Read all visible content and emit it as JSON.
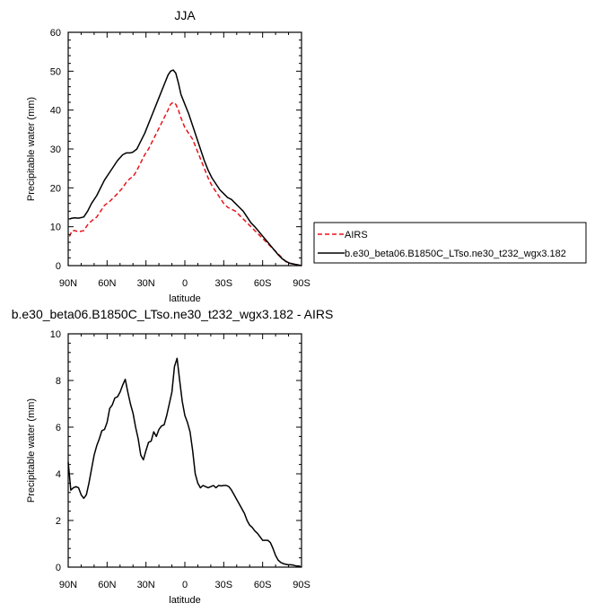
{
  "chart_data": [
    {
      "type": "line",
      "title": "JJA",
      "xlabel": "latitude",
      "ylabel": "Precipitable water (mm)",
      "xlim": [
        90,
        -90
      ],
      "ylim": [
        0,
        60
      ],
      "x_ticks": [
        90,
        60,
        30,
        0,
        -30,
        -60,
        -90
      ],
      "x_tick_labels": [
        "90N",
        "60N",
        "30N",
        "0",
        "30S",
        "60S",
        "90S"
      ],
      "y_ticks": [
        0,
        10,
        20,
        30,
        40,
        50,
        60
      ],
      "y_tick_labels": [
        "0",
        "10",
        "20",
        "30",
        "40",
        "50",
        "60"
      ],
      "legend_position": "outside-right",
      "series": [
        {
          "name": "AIRS",
          "color": "#e8141c",
          "style": "dashed",
          "x": [
            89,
            87,
            85,
            82,
            78,
            75,
            72,
            68,
            65,
            62,
            58,
            55,
            52,
            48,
            45,
            42,
            40,
            37,
            34,
            31,
            28,
            25,
            22,
            19,
            16,
            13,
            11,
            9,
            7,
            5,
            3,
            0,
            -3,
            -6,
            -9,
            -12,
            -15,
            -18,
            -21,
            -24,
            -27,
            -30,
            -33,
            -36,
            -39,
            -42,
            -45,
            -48,
            -51,
            -54,
            -57,
            -60,
            -63,
            -66,
            -69,
            -72,
            -75,
            -78,
            -81,
            -84,
            -87,
            -90
          ],
          "y": [
            7.5,
            9,
            9,
            8.7,
            9,
            10.5,
            11.5,
            12.5,
            14,
            15.5,
            16.5,
            17.5,
            18.5,
            20,
            21.5,
            22.5,
            22.8,
            24.5,
            26.5,
            28.5,
            30,
            32,
            34,
            36,
            38,
            40,
            41.5,
            42,
            41.5,
            40,
            38,
            35.5,
            34,
            32.5,
            30,
            27.5,
            25,
            22.5,
            20.5,
            19,
            17.5,
            16,
            15,
            14.5,
            14,
            13,
            12,
            11,
            10,
            9,
            8,
            7,
            6,
            5,
            4,
            3,
            2,
            1,
            0.6,
            0.4,
            0.2,
            0
          ]
        },
        {
          "name": "b.e30_beta06.B1850C_LTso.ne30_t232_wgx3.182",
          "color": "#000000",
          "style": "solid",
          "x": [
            89,
            87,
            85,
            82,
            78,
            75,
            72,
            68,
            65,
            62,
            58,
            55,
            52,
            48,
            45,
            42,
            40,
            37,
            34,
            31,
            28,
            25,
            22,
            19,
            16,
            13,
            11,
            9,
            7,
            5,
            3,
            0,
            -3,
            -6,
            -9,
            -12,
            -15,
            -18,
            -21,
            -24,
            -27,
            -30,
            -33,
            -36,
            -39,
            -42,
            -45,
            -48,
            -51,
            -54,
            -57,
            -60,
            -63,
            -66,
            -69,
            -72,
            -75,
            -78,
            -81,
            -84,
            -87,
            -90
          ],
          "y": [
            12,
            12.2,
            12.3,
            12.2,
            12.5,
            14,
            16,
            18,
            20,
            22,
            24,
            25.5,
            27,
            28.5,
            29,
            29,
            29.2,
            30,
            32,
            34,
            36.5,
            39,
            41.5,
            44,
            46.5,
            49,
            50,
            50.3,
            49.5,
            47,
            44,
            41.5,
            39,
            36,
            33,
            30,
            27,
            24.5,
            22.5,
            21,
            19.5,
            18.5,
            17.5,
            17,
            16,
            15,
            14,
            12.5,
            11,
            10,
            8.8,
            7.6,
            6.4,
            5.2,
            4,
            2.8,
            1.8,
            1.1,
            0.6,
            0.4,
            0.2,
            0
          ]
        }
      ]
    },
    {
      "type": "line",
      "title": "b.e30_beta06.B1850C_LTso.ne30_t232_wgx3.182 - AIRS",
      "xlabel": "latitude",
      "ylabel": "Precipitable water (mm)",
      "xlim": [
        90,
        -90
      ],
      "ylim": [
        0,
        10
      ],
      "x_ticks": [
        90,
        60,
        30,
        0,
        -30,
        -60,
        -90
      ],
      "x_tick_labels": [
        "90N",
        "60N",
        "30N",
        "0",
        "30S",
        "60S",
        "90S"
      ],
      "y_ticks": [
        0,
        2,
        4,
        6,
        8,
        10
      ],
      "y_tick_labels": [
        "0",
        "2",
        "4",
        "6",
        "8",
        "10"
      ],
      "series": [
        {
          "color": "#000000",
          "style": "solid",
          "x": [
            90,
            88,
            86,
            84,
            82,
            80,
            78,
            76,
            74,
            72,
            70,
            68,
            66,
            64,
            62,
            60,
            58,
            56,
            54,
            52,
            50,
            48,
            46,
            44,
            42,
            40,
            38,
            36,
            34,
            32,
            30,
            28,
            26,
            24,
            22,
            20,
            18,
            16,
            14,
            12,
            10,
            8,
            6,
            4,
            2,
            0,
            -2,
            -4,
            -6,
            -8,
            -10,
            -12,
            -14,
            -16,
            -18,
            -20,
            -22,
            -24,
            -26,
            -28,
            -30,
            -32,
            -34,
            -36,
            -38,
            -40,
            -42,
            -44,
            -46,
            -48,
            -50,
            -52,
            -54,
            -56,
            -58,
            -60,
            -62,
            -64,
            -66,
            -68,
            -70,
            -72,
            -74,
            -76,
            -78,
            -80,
            -82,
            -84,
            -86,
            -88,
            -90
          ],
          "y": [
            4.5,
            3.3,
            3.4,
            3.45,
            3.4,
            3.1,
            2.95,
            3.1,
            3.6,
            4.2,
            4.8,
            5.2,
            5.5,
            5.85,
            5.9,
            6.2,
            6.8,
            6.95,
            7.25,
            7.3,
            7.5,
            7.8,
            8.05,
            7.5,
            7.0,
            6.6,
            6.0,
            5.5,
            4.8,
            4.6,
            5.0,
            5.35,
            5.4,
            5.8,
            5.6,
            5.9,
            6.05,
            6.1,
            6.5,
            7.0,
            7.5,
            8.6,
            8.95,
            8.0,
            7.1,
            6.5,
            6.2,
            5.8,
            5.0,
            4.0,
            3.6,
            3.4,
            3.5,
            3.45,
            3.4,
            3.45,
            3.5,
            3.4,
            3.5,
            3.48,
            3.5,
            3.5,
            3.45,
            3.3,
            3.1,
            2.9,
            2.7,
            2.5,
            2.3,
            2.0,
            1.8,
            1.7,
            1.55,
            1.45,
            1.3,
            1.15,
            1.15,
            1.15,
            1.05,
            0.8,
            0.5,
            0.3,
            0.2,
            0.15,
            0.12,
            0.1,
            0.1,
            0.08,
            0.05,
            0.05,
            0
          ]
        }
      ]
    }
  ]
}
